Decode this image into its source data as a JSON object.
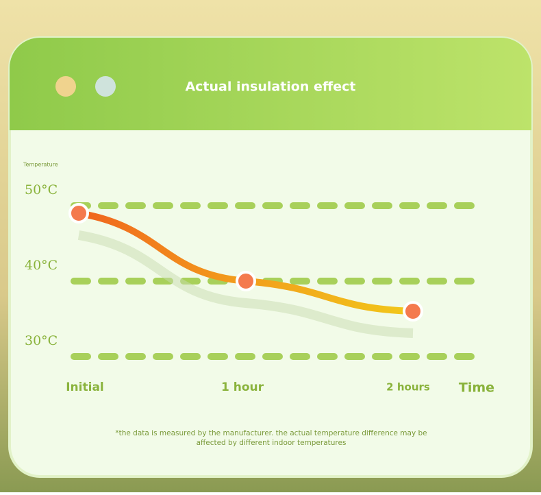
{
  "chart_data": {
    "type": "line",
    "title": "Actual insulation effect",
    "y_label": "Temperature",
    "x_label": "Time",
    "categories": [
      "Initial",
      "1 hour",
      "2 hours"
    ],
    "values": [
      49,
      40,
      36
    ],
    "ylim": [
      30,
      50
    ],
    "yticks": [
      {
        "value": 30,
        "label": "30°C"
      },
      {
        "value": 40,
        "label": "40°C"
      },
      {
        "value": 50,
        "label": "50°C"
      }
    ],
    "grid": true,
    "color": "#f07a1e",
    "note": "*the data is measured by the manufacturer. the actual temperature difference may be affected by different indoor temperatures"
  }
}
